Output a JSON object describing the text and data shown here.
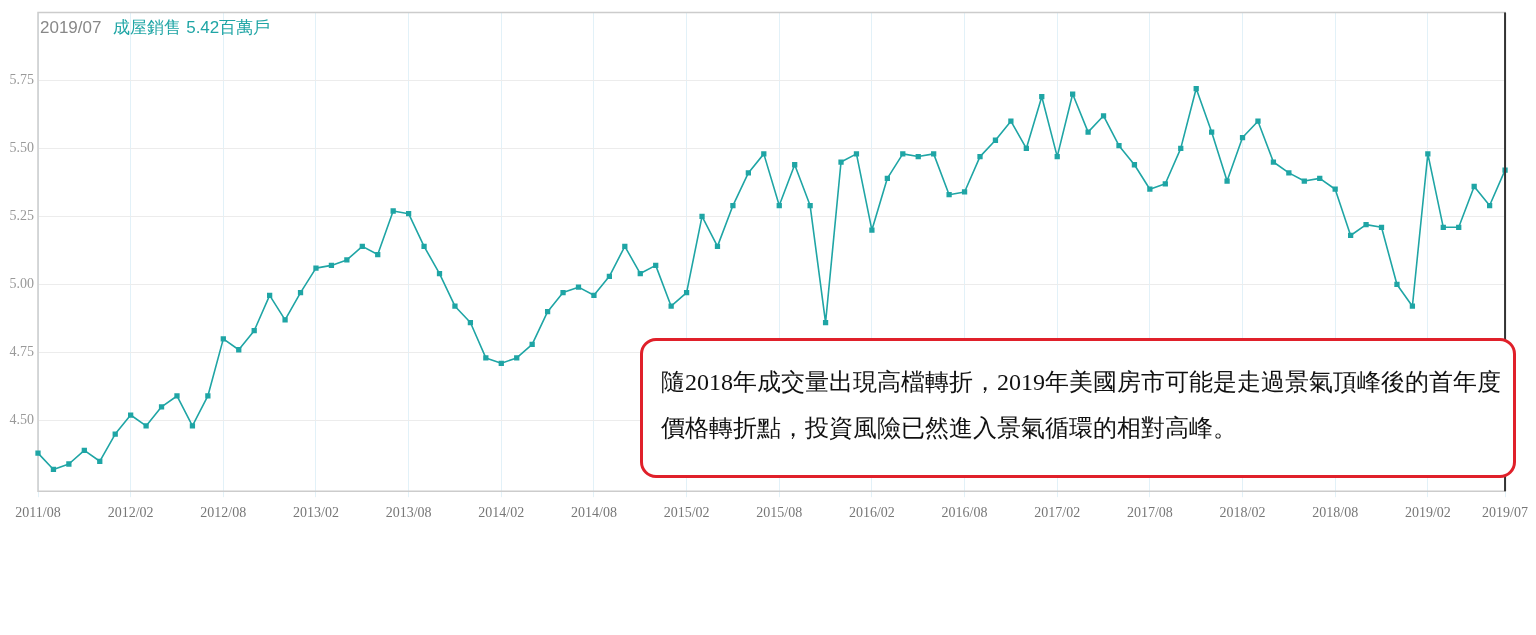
{
  "chart_data": {
    "type": "line",
    "title": "2019/07",
    "annotations": [
      "成屋銷售 5.42百萬戶",
      "隨2018年成交量出現高檔轉折，2019年美國房市可能是走過景氣頂峰後的首年度價格轉折點，投資風險已然進入景氣循環的相對高峰。"
    ],
    "categories": [
      "2011/08",
      null,
      null,
      null,
      null,
      null,
      "2012/02",
      null,
      null,
      null,
      null,
      null,
      "2012/08",
      null,
      null,
      null,
      null,
      null,
      "2013/02",
      null,
      null,
      null,
      null,
      null,
      "2013/08",
      null,
      null,
      null,
      null,
      null,
      "2014/02",
      null,
      null,
      null,
      null,
      null,
      "2014/08",
      null,
      null,
      null,
      null,
      null,
      "2015/02",
      null,
      null,
      null,
      null,
      null,
      "2015/08",
      null,
      null,
      null,
      null,
      null,
      "2016/02",
      null,
      null,
      null,
      null,
      null,
      "2016/08",
      null,
      null,
      null,
      null,
      null,
      "2017/02",
      null,
      null,
      null,
      null,
      null,
      "2017/08",
      null,
      null,
      null,
      null,
      null,
      "2018/02",
      null,
      null,
      null,
      null,
      null,
      "2018/08",
      null,
      null,
      null,
      null,
      null,
      "2019/02",
      null,
      null,
      null,
      null,
      "2019/07"
    ],
    "series": [
      {
        "color": "#1fa5a5",
        "values": [
          4.38,
          4.32,
          4.34,
          4.39,
          4.35,
          4.45,
          4.52,
          4.48,
          4.55,
          4.59,
          4.48,
          4.59,
          4.8,
          4.76,
          4.83,
          4.96,
          4.87,
          4.97,
          5.06,
          5.07,
          5.09,
          5.14,
          5.11,
          5.27,
          5.26,
          5.14,
          5.04,
          4.92,
          4.86,
          4.73,
          4.71,
          4.73,
          4.78,
          4.9,
          4.97,
          4.99,
          4.96,
          5.03,
          5.14,
          5.04,
          5.07,
          4.92,
          4.97,
          5.25,
          5.14,
          5.29,
          5.41,
          5.48,
          5.29,
          5.44,
          5.29,
          4.86,
          5.45,
          5.48,
          5.2,
          5.39,
          5.48,
          5.47,
          5.48,
          5.33,
          5.34,
          5.47,
          5.53,
          5.6,
          5.5,
          5.69,
          5.47,
          5.7,
          5.56,
          5.62,
          5.51,
          5.44,
          5.35,
          5.37,
          5.5,
          5.72,
          5.56,
          5.38,
          5.54,
          5.6,
          5.45,
          5.41,
          5.38,
          5.39,
          5.35,
          5.18,
          5.22,
          5.21,
          5.0,
          4.92,
          5.48,
          5.21,
          5.21,
          5.36,
          5.29,
          5.42
        ]
      }
    ],
    "ylim": [
      4.24,
      6.0
    ],
    "yticks": [
      {
        "value": 4.5,
        "label": "4.50"
      },
      {
        "value": 4.75,
        "label": "4.75"
      },
      {
        "value": 5.0,
        "label": "5.00"
      },
      {
        "value": 5.25,
        "label": "5.25"
      },
      {
        "value": 5.5,
        "label": "5.50"
      },
      {
        "value": 5.75,
        "label": "5.75"
      }
    ],
    "grid": true,
    "marker": "square",
    "line_style": "solid",
    "ref_lines": [
      {
        "axis": "x",
        "value": "2019/07",
        "color": "#333333"
      }
    ]
  }
}
